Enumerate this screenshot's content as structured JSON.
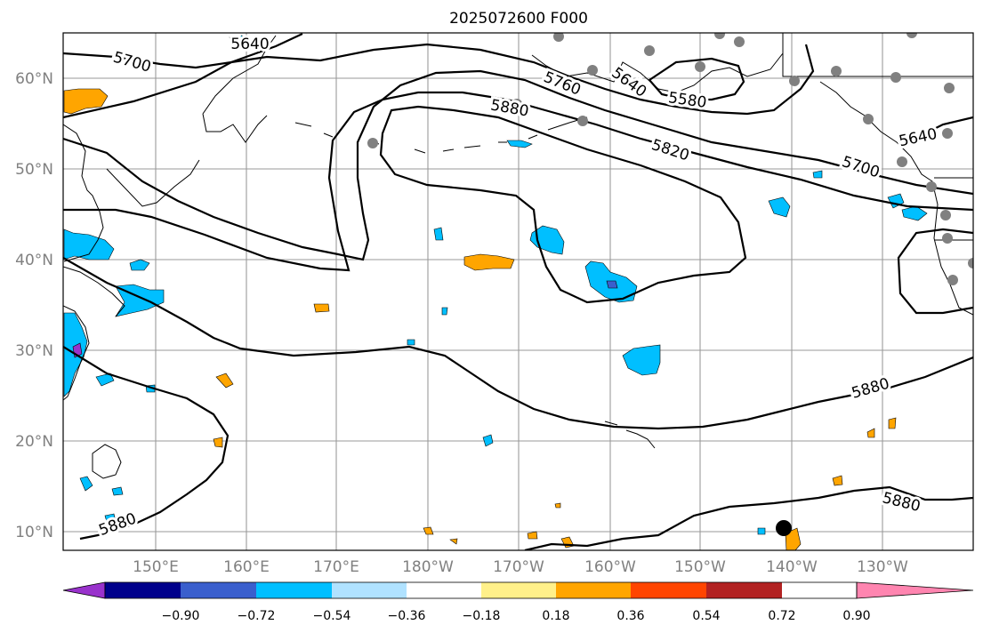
{
  "title": "2025072600 F000",
  "map": {
    "lat_labels": [
      "60°N",
      "50°N",
      "40°N",
      "30°N",
      "20°N",
      "10°N"
    ],
    "lon_labels": [
      "150°E",
      "160°E",
      "170°E",
      "180°W",
      "170°W",
      "160°W",
      "150°W",
      "140°W",
      "130°W"
    ],
    "contour_labels": [
      {
        "id": "c5640a",
        "text": "5640"
      },
      {
        "id": "c5700a",
        "text": "5700"
      },
      {
        "id": "c5760",
        "text": "5760"
      },
      {
        "id": "c5640b",
        "text": "5640"
      },
      {
        "id": "c5580",
        "text": "5580"
      },
      {
        "id": "c5880a",
        "text": "5880"
      },
      {
        "id": "c5820",
        "text": "5820"
      },
      {
        "id": "c5700b",
        "text": "5700"
      },
      {
        "id": "c5640c",
        "text": "5640"
      },
      {
        "id": "c5880b",
        "text": "5880"
      },
      {
        "id": "c5880c",
        "text": "5880"
      },
      {
        "id": "c5880d",
        "text": "5880"
      }
    ]
  },
  "colorbar": {
    "tick_labels": [
      "−0.90",
      "−0.72",
      "−0.54",
      "−0.36",
      "−0.18",
      "0.18",
      "0.36",
      "0.54",
      "0.72",
      "0.90"
    ],
    "colors": [
      "#9932cc",
      "#00008b",
      "#3a5fcd",
      "#00bfff",
      "#b0e2ff",
      "#ffffff",
      "#fff08a",
      "#ffa500",
      "#ff4500",
      "#b22222",
      "#ff85b0"
    ]
  }
}
